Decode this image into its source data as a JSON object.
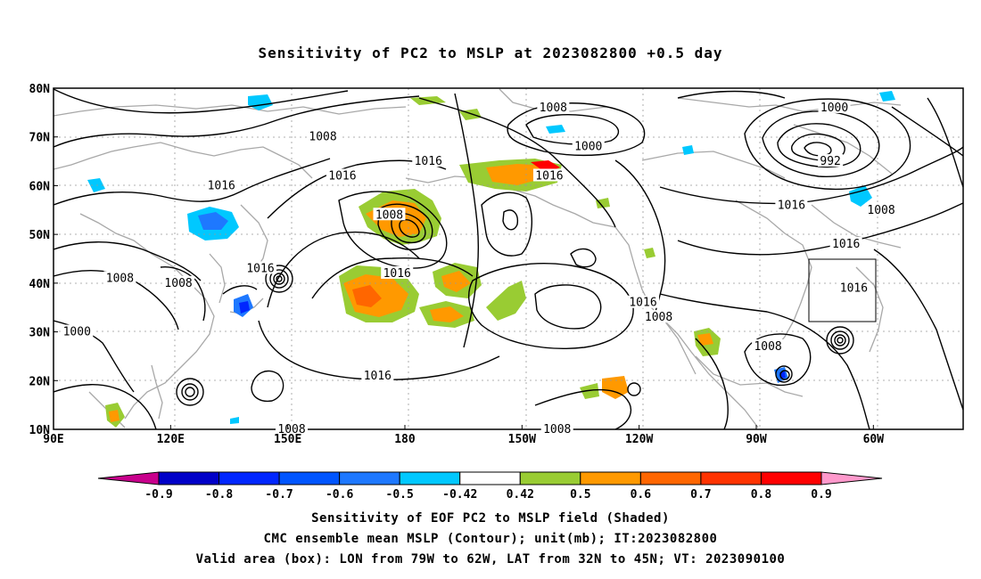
{
  "title": "Sensitivity of PC2 to MSLP at 2023082800 +0.5 day",
  "lat_labels": [
    "80N",
    "70N",
    "60N",
    "50N",
    "40N",
    "30N",
    "20N",
    "10N"
  ],
  "lon_labels": [
    "90E",
    "120E",
    "150E",
    "180",
    "150W",
    "120W",
    "90W",
    "60W"
  ],
  "contour_labels": [
    {
      "text": "1008",
      "lon": 159,
      "lat": 70
    },
    {
      "text": "1016",
      "lon": 133,
      "lat": 60
    },
    {
      "text": "1016",
      "lon": 164,
      "lat": 62
    },
    {
      "text": "1008",
      "lon": 176,
      "lat": 54
    },
    {
      "text": "1016",
      "lon": -174,
      "lat": 65
    },
    {
      "text": "1008",
      "lon": -142,
      "lat": 76
    },
    {
      "text": "1000",
      "lon": -133,
      "lat": 68
    },
    {
      "text": "1016",
      "lon": -143,
      "lat": 62
    },
    {
      "text": "1000",
      "lon": -70,
      "lat": 76
    },
    {
      "text": "992",
      "lon": -71,
      "lat": 65
    },
    {
      "text": "1016",
      "lon": -81,
      "lat": 56
    },
    {
      "text": "1008",
      "lon": -58,
      "lat": 55
    },
    {
      "text": "1016",
      "lon": -67,
      "lat": 48
    },
    {
      "text": "1016",
      "lon": 143,
      "lat": 43
    },
    {
      "text": "1008",
      "lon": 107,
      "lat": 41
    },
    {
      "text": "1008",
      "lon": 122,
      "lat": 40
    },
    {
      "text": "1016",
      "lon": 178,
      "lat": 42
    },
    {
      "text": "1016",
      "lon": -119,
      "lat": 36
    },
    {
      "text": "1008",
      "lon": -115,
      "lat": 33
    },
    {
      "text": "1016",
      "lon": -65,
      "lat": 39
    },
    {
      "text": "1000",
      "lon": 96,
      "lat": 30
    },
    {
      "text": "1016",
      "lon": 173,
      "lat": 21
    },
    {
      "text": "1008",
      "lon": -87,
      "lat": 27
    },
    {
      "text": "1008",
      "lon": 151,
      "lat": 10
    },
    {
      "text": "1008",
      "lon": -141,
      "lat": 10
    }
  ],
  "colorbar": {
    "labels": [
      "-0.9",
      "-0.8",
      "-0.7",
      "-0.6",
      "-0.5",
      "-0.42",
      "0.42",
      "0.5",
      "0.6",
      "0.7",
      "0.8",
      "0.9"
    ],
    "colors": [
      "#0000c8",
      "#0026ff",
      "#0055ff",
      "#1e78ff",
      "#00c8ff",
      "#ffffff",
      "#99cc33",
      "#ff9900",
      "#ff6600",
      "#ff3300",
      "#ff0000"
    ],
    "low_extend_color": "#c8008c",
    "high_extend_color": "#ff99cc"
  },
  "footer": [
    "Sensitivity of EOF PC2 to MSLP field (Shaded)",
    "CMC ensemble mean MSLP (Contour); unit(mb); IT:2023082800",
    "Valid area (box): LON from 79W to 62W, LAT from 32N to 45N; VT: 2023090100"
  ],
  "valid_box": {
    "lon_min": -79,
    "lon_max": -62,
    "lat_min": 32,
    "lat_max": 45
  }
}
